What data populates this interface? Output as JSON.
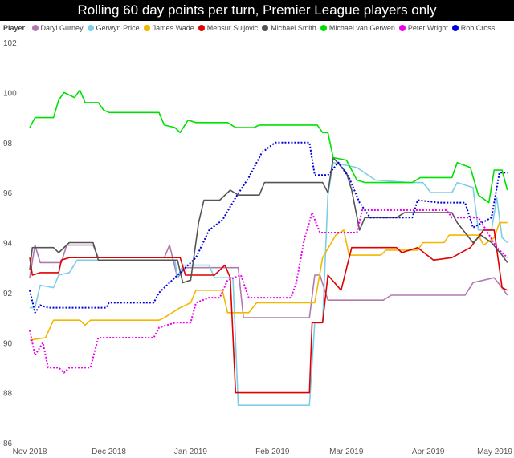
{
  "chart_data": {
    "type": "line",
    "title": "Rolling 60 day points per turn, Premier League players only",
    "legend_title": "Player",
    "legend_placement": "top-left",
    "grid": false,
    "ylim": [
      86,
      102
    ],
    "yticks": [
      86,
      88,
      90,
      92,
      94,
      96,
      98,
      100,
      102
    ],
    "xlim": [
      "2018-11-01",
      "2019-05-02"
    ],
    "xticks": [
      {
        "date": "2018-11-01",
        "label": "Nov 2018"
      },
      {
        "date": "2018-12-01",
        "label": "Dec 2018"
      },
      {
        "date": "2019-01-01",
        "label": "Jan 2019"
      },
      {
        "date": "2019-02-01",
        "label": "Feb 2019"
      },
      {
        "date": "2019-03-01",
        "label": "Mar 2019"
      },
      {
        "date": "2019-04-01",
        "label": "Apr 2019"
      },
      {
        "date": "2019-05-01",
        "label": "May 2019"
      }
    ],
    "series": [
      {
        "name": "Daryl Gurney",
        "color": "#b07ab0",
        "dash": "solid",
        "points": [
          [
            "2018-11-01",
            92.6
          ],
          [
            "2018-11-03",
            93.9
          ],
          [
            "2018-11-05",
            93.2
          ],
          [
            "2018-11-13",
            93.2
          ],
          [
            "2018-11-15",
            93.9
          ],
          [
            "2018-11-25",
            93.9
          ],
          [
            "2018-11-27",
            93.4
          ],
          [
            "2018-12-22",
            93.4
          ],
          [
            "2018-12-24",
            93.9
          ],
          [
            "2018-12-27",
            92.6
          ],
          [
            "2018-12-30",
            93.0
          ],
          [
            "2019-01-19",
            93.0
          ],
          [
            "2019-01-21",
            91.0
          ],
          [
            "2019-02-15",
            91.0
          ],
          [
            "2019-02-17",
            92.7
          ],
          [
            "2019-02-19",
            92.7
          ],
          [
            "2019-02-22",
            91.7
          ],
          [
            "2019-03-15",
            91.7
          ],
          [
            "2019-03-18",
            91.9
          ],
          [
            "2019-04-15",
            91.9
          ],
          [
            "2019-04-18",
            92.4
          ],
          [
            "2019-04-26",
            92.6
          ],
          [
            "2019-04-29",
            92.2
          ],
          [
            "2019-05-01",
            91.9
          ]
        ]
      },
      {
        "name": "Gerwyn Price",
        "color": "#7ecde6",
        "dash": "solid",
        "points": [
          [
            "2018-11-01",
            91.4
          ],
          [
            "2018-11-03",
            91.4
          ],
          [
            "2018-11-05",
            92.3
          ],
          [
            "2018-11-10",
            92.2
          ],
          [
            "2018-11-12",
            92.7
          ],
          [
            "2018-11-16",
            92.8
          ],
          [
            "2018-11-19",
            93.3
          ],
          [
            "2018-12-26",
            93.3
          ],
          [
            "2018-12-27",
            92.6
          ],
          [
            "2018-12-29",
            93.1
          ],
          [
            "2019-01-08",
            93.1
          ],
          [
            "2019-01-10",
            92.6
          ],
          [
            "2019-01-17",
            92.6
          ],
          [
            "2019-01-19",
            87.5
          ],
          [
            "2019-02-15",
            87.5
          ],
          [
            "2019-02-17",
            90.8
          ],
          [
            "2019-02-20",
            90.8
          ],
          [
            "2019-02-22",
            95.9
          ],
          [
            "2019-02-24",
            97.2
          ],
          [
            "2019-03-05",
            97.0
          ],
          [
            "2019-03-12",
            96.5
          ],
          [
            "2019-03-25",
            96.4
          ],
          [
            "2019-03-30",
            96.4
          ],
          [
            "2019-04-02",
            96.0
          ],
          [
            "2019-04-10",
            96.0
          ],
          [
            "2019-04-12",
            96.4
          ],
          [
            "2019-04-18",
            96.2
          ],
          [
            "2019-04-20",
            94.5
          ],
          [
            "2019-04-25",
            94.5
          ],
          [
            "2019-04-27",
            95.8
          ],
          [
            "2019-04-29",
            94.2
          ],
          [
            "2019-05-01",
            94.0
          ]
        ]
      },
      {
        "name": "James Wade",
        "color": "#f0b800",
        "dash": "solid",
        "points": [
          [
            "2018-11-01",
            90.1
          ],
          [
            "2018-11-07",
            90.2
          ],
          [
            "2018-11-10",
            90.9
          ],
          [
            "2018-11-20",
            90.9
          ],
          [
            "2018-11-22",
            90.7
          ],
          [
            "2018-11-24",
            90.9
          ],
          [
            "2018-12-20",
            90.9
          ],
          [
            "2018-12-22",
            91.0
          ],
          [
            "2018-12-28",
            91.4
          ],
          [
            "2019-01-01",
            91.6
          ],
          [
            "2019-01-03",
            92.1
          ],
          [
            "2019-01-13",
            92.1
          ],
          [
            "2019-01-15",
            91.2
          ],
          [
            "2019-01-23",
            91.2
          ],
          [
            "2019-01-26",
            91.6
          ],
          [
            "2019-02-17",
            91.6
          ],
          [
            "2019-02-20",
            93.4
          ],
          [
            "2019-02-25",
            94.3
          ],
          [
            "2019-02-28",
            94.5
          ],
          [
            "2019-03-02",
            93.5
          ],
          [
            "2019-03-14",
            93.5
          ],
          [
            "2019-03-16",
            93.7
          ],
          [
            "2019-03-28",
            93.7
          ],
          [
            "2019-03-30",
            94.0
          ],
          [
            "2019-04-07",
            94.0
          ],
          [
            "2019-04-09",
            94.3
          ],
          [
            "2019-04-20",
            94.3
          ],
          [
            "2019-04-22",
            93.9
          ],
          [
            "2019-04-26",
            94.2
          ],
          [
            "2019-04-28",
            94.8
          ],
          [
            "2019-05-01",
            94.8
          ]
        ]
      },
      {
        "name": "Mensur Suljovic",
        "color": "#e00000",
        "dash": "solid",
        "points": [
          [
            "2018-11-01",
            93.4
          ],
          [
            "2018-11-02",
            92.7
          ],
          [
            "2018-11-05",
            92.8
          ],
          [
            "2018-11-12",
            92.8
          ],
          [
            "2018-11-13",
            93.3
          ],
          [
            "2018-11-16",
            93.4
          ],
          [
            "2018-12-28",
            93.4
          ],
          [
            "2018-12-30",
            92.7
          ],
          [
            "2019-01-10",
            92.7
          ],
          [
            "2019-01-14",
            93.1
          ],
          [
            "2019-01-16",
            92.6
          ],
          [
            "2019-01-18",
            88.0
          ],
          [
            "2019-02-13",
            88.0
          ],
          [
            "2019-02-15",
            88.0
          ],
          [
            "2019-02-16",
            90.8
          ],
          [
            "2019-02-20",
            90.8
          ],
          [
            "2019-02-22",
            92.7
          ],
          [
            "2019-02-27",
            92.1
          ],
          [
            "2019-03-03",
            93.8
          ],
          [
            "2019-03-20",
            93.8
          ],
          [
            "2019-03-22",
            93.6
          ],
          [
            "2019-03-28",
            93.8
          ],
          [
            "2019-04-03",
            93.3
          ],
          [
            "2019-04-10",
            93.4
          ],
          [
            "2019-04-17",
            93.8
          ],
          [
            "2019-04-22",
            94.5
          ],
          [
            "2019-04-26",
            94.5
          ],
          [
            "2019-04-29",
            92.2
          ],
          [
            "2019-05-01",
            92.1
          ]
        ]
      },
      {
        "name": "Michael Smith",
        "color": "#555555",
        "dash": "solid",
        "points": [
          [
            "2018-11-01",
            92.9
          ],
          [
            "2018-11-02",
            93.8
          ],
          [
            "2018-11-10",
            93.8
          ],
          [
            "2018-11-12",
            93.6
          ],
          [
            "2018-11-16",
            94.0
          ],
          [
            "2018-11-25",
            94.0
          ],
          [
            "2018-11-27",
            93.3
          ],
          [
            "2018-12-27",
            93.3
          ],
          [
            "2018-12-29",
            92.4
          ],
          [
            "2019-01-01",
            92.5
          ],
          [
            "2019-01-04",
            94.8
          ],
          [
            "2019-01-06",
            95.7
          ],
          [
            "2019-01-12",
            95.7
          ],
          [
            "2019-01-16",
            96.1
          ],
          [
            "2019-01-19",
            95.9
          ],
          [
            "2019-01-27",
            95.9
          ],
          [
            "2019-01-29",
            96.4
          ],
          [
            "2019-02-20",
            96.4
          ],
          [
            "2019-02-22",
            96.0
          ],
          [
            "2019-02-24",
            97.4
          ],
          [
            "2019-03-01",
            96.8
          ],
          [
            "2019-03-03",
            96.1
          ],
          [
            "2019-03-06",
            94.5
          ],
          [
            "2019-03-08",
            95.0
          ],
          [
            "2019-03-20",
            95.0
          ],
          [
            "2019-03-23",
            95.2
          ],
          [
            "2019-04-10",
            95.2
          ],
          [
            "2019-04-12",
            94.8
          ],
          [
            "2019-04-18",
            94.0
          ],
          [
            "2019-04-21",
            94.3
          ],
          [
            "2019-04-25",
            94.0
          ],
          [
            "2019-04-29",
            93.5
          ],
          [
            "2019-05-01",
            93.2
          ]
        ]
      },
      {
        "name": "Michael van Gerwen",
        "color": "#00e000",
        "dash": "solid",
        "points": [
          [
            "2018-11-01",
            98.6
          ],
          [
            "2018-11-03",
            99.0
          ],
          [
            "2018-11-10",
            99.0
          ],
          [
            "2018-11-12",
            99.7
          ],
          [
            "2018-11-14",
            100.0
          ],
          [
            "2018-11-18",
            99.8
          ],
          [
            "2018-11-20",
            100.1
          ],
          [
            "2018-11-22",
            99.6
          ],
          [
            "2018-11-27",
            99.6
          ],
          [
            "2018-11-29",
            99.3
          ],
          [
            "2018-12-01",
            99.2
          ],
          [
            "2018-12-20",
            99.2
          ],
          [
            "2018-12-22",
            98.7
          ],
          [
            "2018-12-26",
            98.6
          ],
          [
            "2018-12-28",
            98.4
          ],
          [
            "2018-12-31",
            98.9
          ],
          [
            "2019-01-03",
            98.8
          ],
          [
            "2019-01-15",
            98.8
          ],
          [
            "2019-01-18",
            98.6
          ],
          [
            "2019-01-25",
            98.6
          ],
          [
            "2019-01-27",
            98.7
          ],
          [
            "2019-02-18",
            98.7
          ],
          [
            "2019-02-20",
            98.4
          ],
          [
            "2019-02-22",
            98.4
          ],
          [
            "2019-02-24",
            97.4
          ],
          [
            "2019-03-01",
            97.3
          ],
          [
            "2019-03-05",
            96.5
          ],
          [
            "2019-03-08",
            96.4
          ],
          [
            "2019-03-26",
            96.4
          ],
          [
            "2019-03-29",
            96.6
          ],
          [
            "2019-04-10",
            96.6
          ],
          [
            "2019-04-12",
            97.2
          ],
          [
            "2019-04-17",
            97.0
          ],
          [
            "2019-04-20",
            95.9
          ],
          [
            "2019-04-24",
            95.6
          ],
          [
            "2019-04-26",
            96.9
          ],
          [
            "2019-04-29",
            96.9
          ],
          [
            "2019-05-01",
            96.1
          ]
        ]
      },
      {
        "name": "Peter Wright",
        "color": "#ee00ee",
        "dash": "dotted",
        "points": [
          [
            "2018-11-01",
            90.5
          ],
          [
            "2018-11-03",
            89.5
          ],
          [
            "2018-11-06",
            90.0
          ],
          [
            "2018-11-08",
            89.0
          ],
          [
            "2018-11-12",
            89.0
          ],
          [
            "2018-11-14",
            88.8
          ],
          [
            "2018-11-16",
            89.0
          ],
          [
            "2018-11-24",
            89.0
          ],
          [
            "2018-11-27",
            90.2
          ],
          [
            "2018-12-18",
            90.2
          ],
          [
            "2018-12-20",
            90.6
          ],
          [
            "2018-12-26",
            90.8
          ],
          [
            "2019-01-01",
            90.8
          ],
          [
            "2019-01-03",
            91.6
          ],
          [
            "2019-01-08",
            91.8
          ],
          [
            "2019-01-12",
            91.8
          ],
          [
            "2019-01-15",
            92.5
          ],
          [
            "2019-01-20",
            92.7
          ],
          [
            "2019-01-23",
            91.8
          ],
          [
            "2019-02-08",
            91.8
          ],
          [
            "2019-02-10",
            92.4
          ],
          [
            "2019-02-13",
            94.1
          ],
          [
            "2019-02-16",
            95.2
          ],
          [
            "2019-02-19",
            94.4
          ],
          [
            "2019-03-05",
            94.4
          ],
          [
            "2019-03-07",
            95.3
          ],
          [
            "2019-04-08",
            95.3
          ],
          [
            "2019-04-10",
            95.0
          ],
          [
            "2019-04-20",
            95.0
          ],
          [
            "2019-04-23",
            94.5
          ],
          [
            "2019-04-27",
            93.8
          ],
          [
            "2019-05-01",
            93.4
          ]
        ]
      },
      {
        "name": "Rob Cross",
        "color": "#0000dd",
        "dash": "dotted",
        "points": [
          [
            "2018-11-01",
            92.1
          ],
          [
            "2018-11-03",
            91.2
          ],
          [
            "2018-11-05",
            91.5
          ],
          [
            "2018-11-08",
            91.4
          ],
          [
            "2018-11-30",
            91.4
          ],
          [
            "2018-12-01",
            91.6
          ],
          [
            "2018-12-18",
            91.6
          ],
          [
            "2018-12-20",
            92.0
          ],
          [
            "2018-12-27",
            92.7
          ],
          [
            "2019-01-03",
            93.4
          ],
          [
            "2019-01-08",
            94.5
          ],
          [
            "2019-01-13",
            94.9
          ],
          [
            "2019-01-18",
            95.8
          ],
          [
            "2019-01-23",
            96.6
          ],
          [
            "2019-01-28",
            97.6
          ],
          [
            "2019-02-02",
            98.0
          ],
          [
            "2019-02-15",
            98.0
          ],
          [
            "2019-02-17",
            96.7
          ],
          [
            "2019-02-22",
            96.7
          ],
          [
            "2019-02-26",
            97.2
          ],
          [
            "2019-03-02",
            96.6
          ],
          [
            "2019-03-06",
            95.6
          ],
          [
            "2019-03-10",
            95.0
          ],
          [
            "2019-03-26",
            95.0
          ],
          [
            "2019-03-28",
            95.7
          ],
          [
            "2019-04-05",
            95.6
          ],
          [
            "2019-04-15",
            95.6
          ],
          [
            "2019-04-18",
            94.6
          ],
          [
            "2019-04-25",
            95.0
          ],
          [
            "2019-04-28",
            96.8
          ],
          [
            "2019-05-01",
            96.8
          ]
        ]
      }
    ]
  }
}
